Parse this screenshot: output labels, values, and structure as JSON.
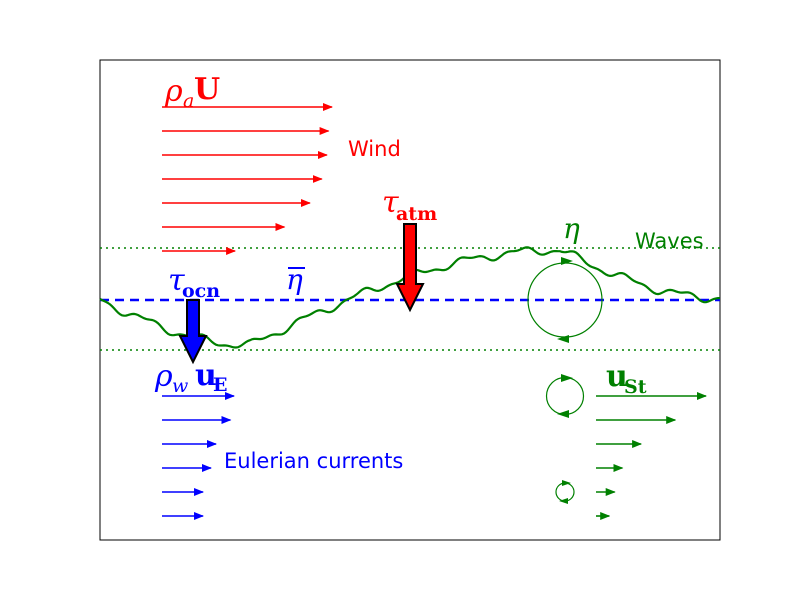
{
  "colors": {
    "wind": "#ff0000",
    "current": "#0000ff",
    "wave": "#008000",
    "frame": "#000000"
  },
  "labels": {
    "wind": "Wind",
    "waves": "Waves",
    "eulerian": "Eulerian currents"
  },
  "symbols": {
    "rho_a_sym": "ρ",
    "rho_a_sub": "a",
    "rho_a_vec": "U",
    "rho_w_sym": "ρ",
    "rho_w_sub": "w",
    "rho_w_vec": "u",
    "rho_w_vec_sub": "E",
    "tau_atm_sym": "τ",
    "tau_atm_sub": "atm",
    "tau_ocn_sym": "τ",
    "tau_ocn_sub": "ocn",
    "eta": "η",
    "eta_bar": "η",
    "stokes_vec": "u",
    "stokes_sub": "St"
  },
  "wind_profile_lengths": [
    1.0,
    0.98,
    0.97,
    0.94,
    0.87,
    0.72,
    0.43
  ],
  "eulerian_profile_lengths": [
    1.0,
    0.95,
    0.75,
    0.68,
    0.57,
    0.57
  ],
  "stokes_profile_lengths": [
    1.0,
    0.72,
    0.41,
    0.24,
    0.17,
    0.12
  ],
  "orbital_relative_sizes": [
    1.0,
    0.5,
    0.24
  ],
  "icons": [
    "down-arrow-icon",
    "orbital-circle-icon"
  ]
}
